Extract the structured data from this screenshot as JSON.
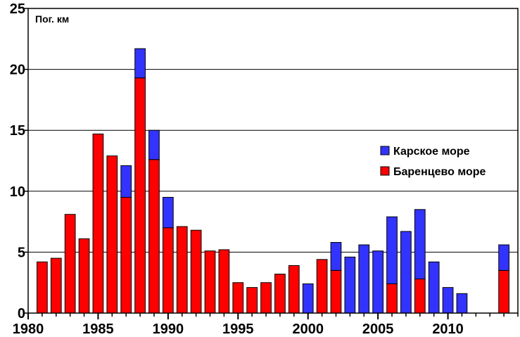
{
  "chart_data": {
    "type": "bar",
    "stacked": true,
    "title": "",
    "ylabel": "Пог. км",
    "xlabel": "",
    "xlim": [
      1980,
      2015
    ],
    "ylim": [
      0,
      25
    ],
    "x_ticks": [
      "1980",
      "1985",
      "1990",
      "1995",
      "2000",
      "2005",
      "2010"
    ],
    "y_ticks": [
      "0",
      "5",
      "10",
      "15",
      "20",
      "25"
    ],
    "grid": "horizontal",
    "legend_position": "right",
    "colors": {
      "barents": "#ff0000",
      "kara": "#3333ff",
      "outline": "#000000"
    },
    "series": [
      {
        "name": "Баренцево море",
        "color_key": "barents",
        "points": [
          [
            1981,
            4.2
          ],
          [
            1982,
            4.5
          ],
          [
            1983,
            8.1
          ],
          [
            1984,
            6.1
          ],
          [
            1985,
            14.7
          ],
          [
            1986,
            12.9
          ],
          [
            1987,
            9.5
          ],
          [
            1988,
            19.3
          ],
          [
            1989,
            12.6
          ],
          [
            1990,
            7.0
          ],
          [
            1991,
            7.1
          ],
          [
            1992,
            6.8
          ],
          [
            1993,
            5.1
          ],
          [
            1994,
            5.2
          ],
          [
            1995,
            2.5
          ],
          [
            1996,
            2.1
          ],
          [
            1997,
            2.5
          ],
          [
            1998,
            3.2
          ],
          [
            1999,
            3.9
          ],
          [
            2001,
            4.4
          ],
          [
            2002,
            3.5
          ],
          [
            2006,
            2.4
          ],
          [
            2008,
            2.8
          ],
          [
            2014,
            3.5
          ]
        ]
      },
      {
        "name": "Карское море",
        "color_key": "kara",
        "points": [
          [
            1987,
            2.6
          ],
          [
            1988,
            2.4
          ],
          [
            1989,
            2.4
          ],
          [
            1990,
            2.5
          ],
          [
            2000,
            2.4
          ],
          [
            2002,
            2.3
          ],
          [
            2003,
            4.6
          ],
          [
            2004,
            5.6
          ],
          [
            2005,
            5.1
          ],
          [
            2006,
            5.5
          ],
          [
            2007,
            6.7
          ],
          [
            2008,
            5.7
          ],
          [
            2009,
            4.2
          ],
          [
            2010,
            2.1
          ],
          [
            2011,
            1.6
          ],
          [
            2014,
            2.1
          ]
        ]
      }
    ],
    "legend": [
      {
        "label": "Карское море",
        "color_key": "kara"
      },
      {
        "label": "Баренцево море",
        "color_key": "barents"
      }
    ]
  }
}
